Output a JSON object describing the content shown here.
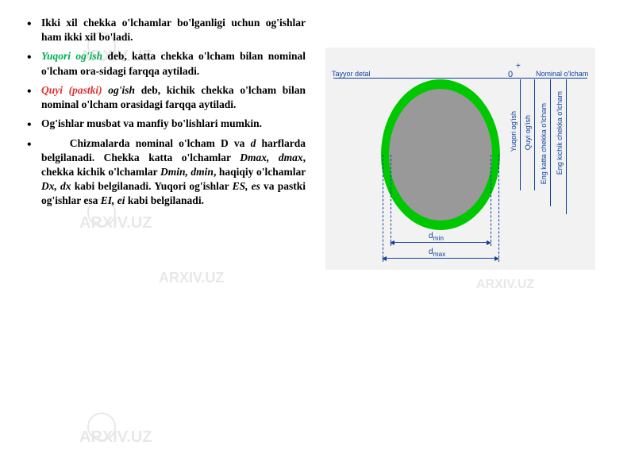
{
  "watermarks": {
    "text": "ARXIV.UZ"
  },
  "bullets": {
    "b1": "Ikki xil chekka o'lchamlar bo'lganligi uchun og'ishlar ham ikki xil bo'ladi.",
    "b2_hl": "Yuqori og'ish",
    "b2_rest": " deb, katta chekka o'lcham bilan nominal o'lcham ora-sidagi farqqa aytiladi.",
    "b3_hl": "Quyi (pastki)",
    "b3_mid": " og'ish",
    "b3_rest": " deb, kichik chekka o'lcham bilan nominal o'lcham orasidagi farqqa aytiladi.",
    "b4": "Og'ishlar musbat va manfiy bo'lishlari mumkin.",
    "b5_p1": "Chizmalarda nominal o'lcham D va ",
    "b5_i1": "d",
    "b5_p2": " harflarda belgilanadi. Chekka katta o'lchamlar ",
    "b5_i2": "Dmax, dmax",
    "b5_p3": ", chekka kichik o'lchamlar ",
    "b5_i3": "Dmin, dmin",
    "b5_p4": ", haqiqiy o'lchamlar ",
    "b5_i4": "Dx, dx",
    "b5_p5": " kabi belgilanadi. Yuqori og'ishlar ",
    "b5_i5": "ES, es",
    "b5_p6": " va pastki og'ishlar esa ",
    "b5_i6": "EI, ei",
    "b5_p7": " kabi belgilanadi."
  },
  "diagram": {
    "background_color": "#f2f2f2",
    "ellipse_outer_color": "#00c800",
    "ellipse_inner_color": "#999999",
    "line_color": "#1040a0",
    "labels": {
      "dmin": "d",
      "dmin_sub": "min",
      "dmax": "d",
      "dmax_sub": "max",
      "tayyor": "Tayyor detal",
      "nominal": "Nominal o'lcham",
      "zero": "0",
      "plus": "+",
      "vert1": "Yuqori og'ish",
      "vert2": "Quyi og'ish",
      "vert3": "Eng katta chekka o'lcham",
      "vert4": "Eng kichik chekka o'lcham"
    }
  }
}
